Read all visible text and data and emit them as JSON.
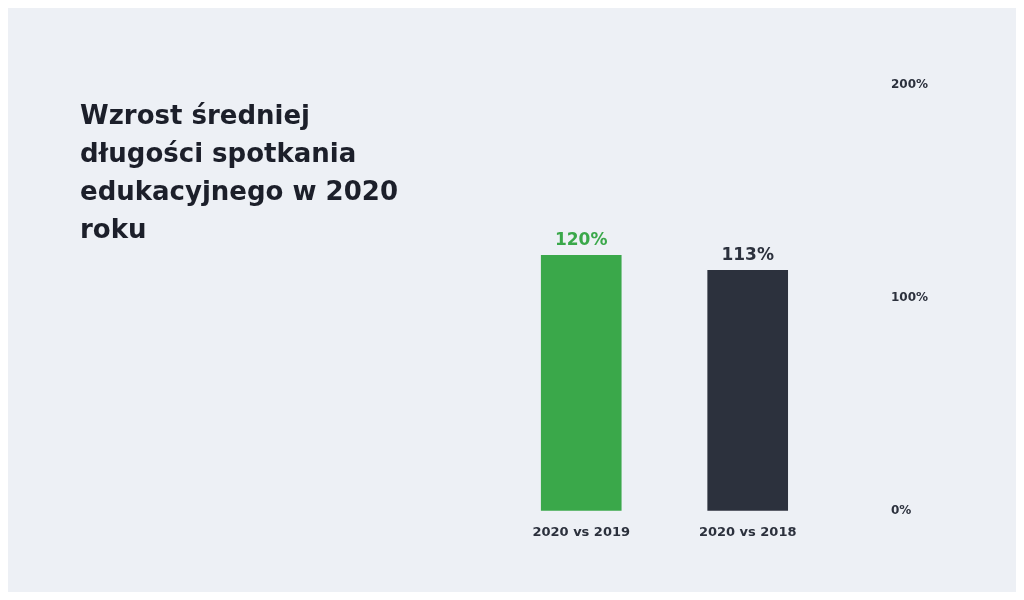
{
  "chart_data": {
    "type": "bar",
    "title": "Wzrost średniej długości spotkania edukacyjnego w 2020 roku",
    "categories": [
      "2020 vs 2019",
      "2020 vs 2018"
    ],
    "values": [
      120,
      113
    ],
    "colors": [
      "#3aa84a",
      "#2c313d"
    ],
    "value_labels": [
      "120%",
      "113%"
    ],
    "ylim": [
      0,
      200
    ],
    "yticks": [
      {
        "value": 0,
        "label": "0%"
      },
      {
        "value": 100,
        "label": "100%"
      },
      {
        "value": 200,
        "label": "200%"
      }
    ],
    "legend": false
  }
}
